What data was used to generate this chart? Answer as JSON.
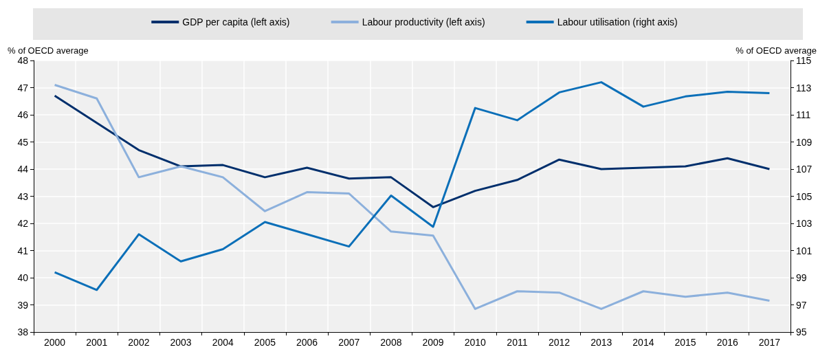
{
  "chart_data": {
    "type": "line",
    "ylabel": "% of OECD average",
    "y2label": "% of OECD average",
    "categories": [
      "2000",
      "2001",
      "2002",
      "2003",
      "2004",
      "2005",
      "2006",
      "2007",
      "2008",
      "2009",
      "2010",
      "2011",
      "2012",
      "2013",
      "2014",
      "2015",
      "2016",
      "2017"
    ],
    "series": [
      {
        "name": "GDP per capita (left axis)",
        "color": "#002f6c",
        "values": [
          46.7,
          45.7,
          44.7,
          44.1,
          44.15,
          43.7,
          44.05,
          43.65,
          43.7,
          42.6,
          43.2,
          43.6,
          44.35,
          44.0,
          44.05,
          44.1,
          44.4,
          44.0
        ]
      },
      {
        "name": "Labour productivity (left axis)",
        "color": "#8cb0dc",
        "values": [
          47.1,
          46.6,
          43.7,
          44.1,
          43.7,
          42.45,
          43.15,
          43.1,
          41.7,
          41.55,
          38.85,
          39.5,
          39.45,
          38.85,
          39.5,
          39.3,
          39.45,
          39.15
        ]
      },
      {
        "name": "Labour utilisation (right axis)",
        "color": "#0b6fb8",
        "axis": "y2",
        "values": [
          99.4,
          98.1,
          102.2,
          100.2,
          101.1,
          103.1,
          102.2,
          101.3,
          105.05,
          102.75,
          111.5,
          110.6,
          112.65,
          113.4,
          111.6,
          112.35,
          112.7,
          112.6
        ]
      }
    ],
    "ylim": [
      38,
      48
    ],
    "yticks": [
      38,
      39,
      40,
      41,
      42,
      43,
      44,
      45,
      46,
      47,
      48
    ],
    "y2lim": [
      95,
      115
    ],
    "y2ticks": [
      95,
      97,
      99,
      101,
      103,
      105,
      107,
      109,
      111,
      113,
      115
    ],
    "grid": true,
    "legend": "top",
    "marker": "none",
    "line_style": "solid"
  }
}
